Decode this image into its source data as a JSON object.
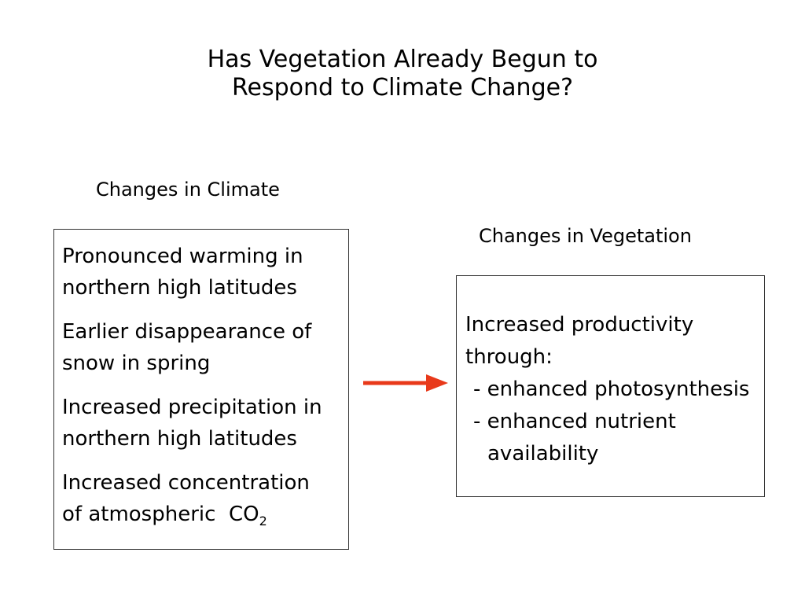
{
  "title": {
    "line1": "Has Vegetation Already Begun to",
    "line2": "Respond to Climate Change?"
  },
  "climate": {
    "heading": "Changes in Climate",
    "items": [
      {
        "line1": "Pronounced warming in",
        "line2": "northern high latitudes"
      },
      {
        "line1": "Earlier disappearance of",
        "line2": "snow in spring"
      },
      {
        "line1": "Increased precipitation in",
        "line2": "northern high latitudes"
      },
      {
        "line1": "Increased concentration",
        "line2_prefix": "of atmospheric  CO",
        "line2_sub": "2"
      }
    ]
  },
  "vegetation": {
    "heading": "Changes in Vegetation",
    "line1": "Increased productivity",
    "line2": "through:",
    "bullet1": "- enhanced photosynthesis",
    "bullet2_line1": "- enhanced nutrient",
    "bullet2_line2": "availability"
  },
  "colors": {
    "arrow": "#e8391a",
    "border": "#333333"
  }
}
